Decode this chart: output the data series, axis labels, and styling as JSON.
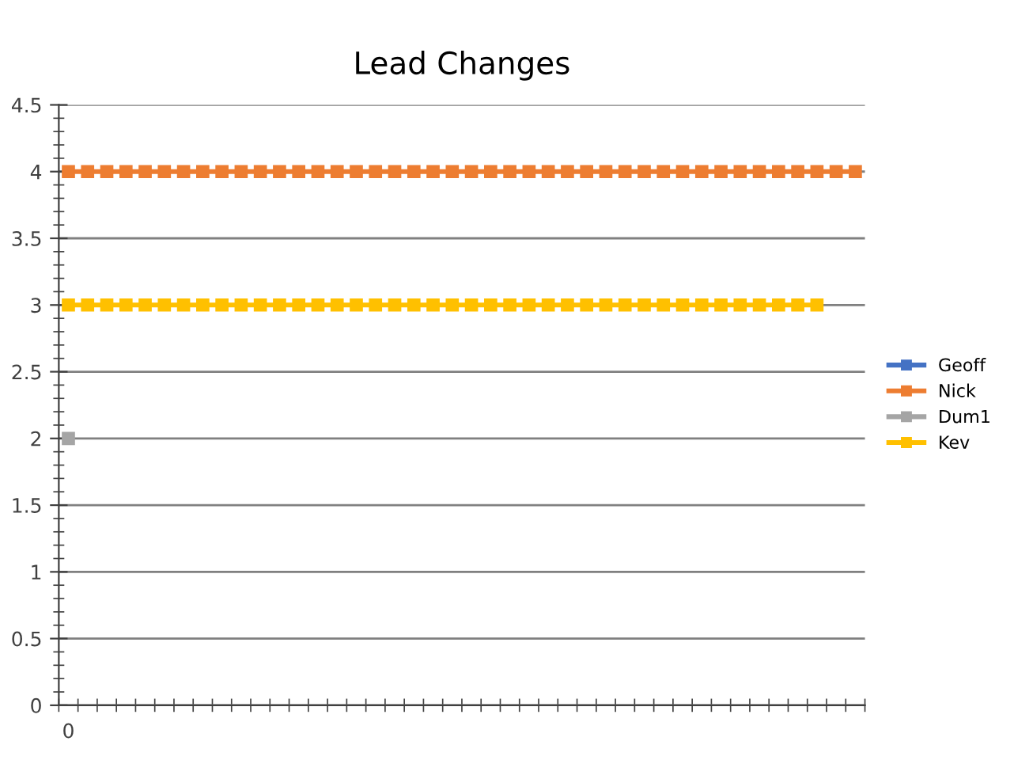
{
  "chart_data": {
    "type": "line",
    "title": "Lead Changes",
    "categories": [
      "0",
      null,
      null,
      null,
      null,
      null,
      null,
      null,
      null,
      null,
      null,
      null,
      null,
      null,
      null,
      null,
      null,
      null,
      null,
      null,
      null,
      null,
      null,
      null,
      null,
      null,
      null,
      null,
      null,
      null,
      null,
      null,
      null,
      null,
      null,
      null,
      null,
      null,
      null,
      null,
      null,
      null
    ],
    "series": [
      {
        "name": "Geoff",
        "color": "#4472c4",
        "values": [
          null,
          null,
          null,
          null,
          null,
          null,
          null,
          null,
          null,
          null,
          null,
          null,
          null,
          null,
          null,
          null,
          null,
          null,
          null,
          null,
          null,
          null,
          null,
          null,
          null,
          null,
          null,
          null,
          null,
          null,
          null,
          null,
          null,
          null,
          null,
          null,
          null,
          null,
          null,
          null,
          null,
          null
        ]
      },
      {
        "name": "Nick",
        "color": "#ed7d31",
        "values": [
          4,
          4,
          4,
          4,
          4,
          4,
          4,
          4,
          4,
          4,
          4,
          4,
          4,
          4,
          4,
          4,
          4,
          4,
          4,
          4,
          4,
          4,
          4,
          4,
          4,
          4,
          4,
          4,
          4,
          4,
          4,
          4,
          4,
          4,
          4,
          4,
          4,
          4,
          4,
          4,
          4,
          4
        ]
      },
      {
        "name": "Dum1",
        "color": "#a5a5a5",
        "values": [
          2,
          null,
          null,
          null,
          null,
          null,
          null,
          null,
          null,
          null,
          null,
          null,
          null,
          null,
          null,
          null,
          null,
          null,
          null,
          null,
          null,
          null,
          null,
          null,
          null,
          null,
          null,
          null,
          null,
          null,
          null,
          null,
          null,
          null,
          null,
          null,
          null,
          null,
          null,
          null,
          null,
          null
        ]
      },
      {
        "name": "Kev",
        "color": "#ffc000",
        "values": [
          3,
          3,
          3,
          3,
          3,
          3,
          3,
          3,
          3,
          3,
          3,
          3,
          3,
          3,
          3,
          3,
          3,
          3,
          3,
          3,
          3,
          3,
          3,
          3,
          3,
          3,
          3,
          3,
          3,
          3,
          3,
          3,
          3,
          3,
          3,
          3,
          3,
          3,
          3,
          3,
          null,
          null
        ]
      }
    ],
    "ylim": [
      0,
      4.5
    ],
    "yticks": [
      0,
      0.5,
      1,
      1.5,
      2,
      2.5,
      3,
      3.5,
      4,
      4.5
    ],
    "grid": "y",
    "legend": "right",
    "marker": "square",
    "line_style": "solid"
  }
}
